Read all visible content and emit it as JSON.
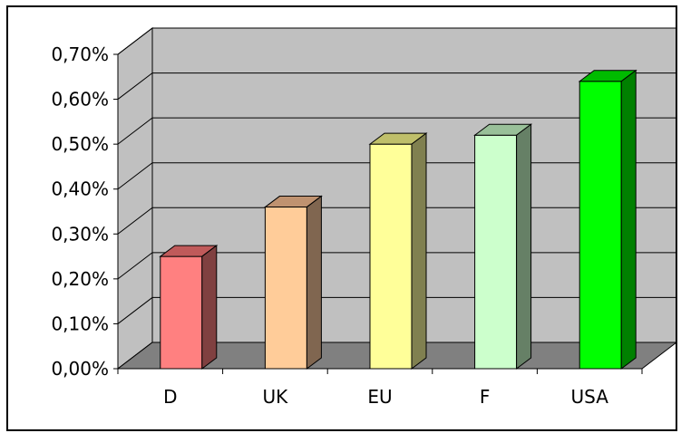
{
  "chart_data": {
    "type": "bar",
    "categories": [
      "D",
      "UK",
      "EU",
      "F",
      "USA"
    ],
    "values": [
      0.25,
      0.36,
      0.5,
      0.52,
      0.64
    ],
    "ylim": [
      0,
      0.7
    ],
    "yticks": [
      "0,00%",
      "0,10%",
      "0,20%",
      "0,30%",
      "0,40%",
      "0,50%",
      "0,60%",
      "0,70%"
    ],
    "ytick_values": [
      0,
      0.1,
      0.2,
      0.3,
      0.4,
      0.5,
      0.6,
      0.7
    ],
    "title": "",
    "xlabel": "",
    "ylabel": "",
    "grid": true,
    "three_d": true,
    "colors": {
      "D": {
        "front": "#ff8080",
        "top": "#c05a5a",
        "side": "#804040"
      },
      "UK": {
        "front": "#ffcc99",
        "top": "#bf9270",
        "side": "#806650"
      },
      "EU": {
        "front": "#ffff99",
        "top": "#bfbf6a",
        "side": "#808050"
      },
      "F": {
        "front": "#ccffcc",
        "top": "#99c099",
        "side": "#668066"
      },
      "USA": {
        "front": "#00ff00",
        "top": "#00bb00",
        "side": "#008000"
      }
    },
    "wall_color": "#c0c0c0",
    "floor_color": "#808080"
  }
}
